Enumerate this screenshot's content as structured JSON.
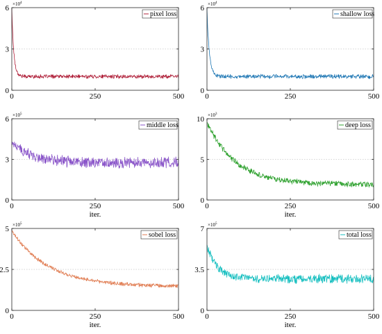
{
  "chart_data": [
    {
      "type": "line",
      "legend": "pixel loss",
      "legend_position": "top-right",
      "color": "#b0213a",
      "multiplier": "×10",
      "multiplier_exp": "4",
      "ylim": [
        0,
        6
      ],
      "yticks": [
        0,
        3,
        6
      ],
      "ytick_labels": [
        "0",
        "3",
        "6"
      ],
      "xlim": [
        0,
        500
      ],
      "xticks": [
        0,
        250,
        500
      ],
      "xtick_labels": [
        "0",
        "250",
        "500"
      ],
      "xlabel": "",
      "grid": "dotted line at middle y tick",
      "curve": {
        "start": 5.9,
        "plateau": 1.0,
        "decay_iters": 6,
        "noise": 0.12
      },
      "x": [
        0,
        5,
        10,
        15,
        20,
        25,
        30,
        40,
        50,
        75,
        100,
        150,
        200,
        250,
        300,
        350,
        400,
        450,
        500
      ],
      "y": [
        5.9,
        3.6,
        2.1,
        1.5,
        1.2,
        1.08,
        1.02,
        1.0,
        1.0,
        1.0,
        1.0,
        1.0,
        1.0,
        1.0,
        1.0,
        1.0,
        1.0,
        1.0,
        1.0
      ]
    },
    {
      "type": "line",
      "legend": "shallow loss",
      "legend_position": "top-right",
      "color": "#1f77b4",
      "multiplier": "×10",
      "multiplier_exp": "4",
      "ylim": [
        0,
        6
      ],
      "yticks": [
        0,
        3,
        6
      ],
      "ytick_labels": [
        "0",
        "3",
        "6"
      ],
      "xlim": [
        0,
        500
      ],
      "xticks": [
        0,
        250,
        500
      ],
      "xtick_labels": [
        "0",
        "250",
        "500"
      ],
      "xlabel": "",
      "grid": "dotted line at middle y tick",
      "curve": {
        "start": 5.9,
        "plateau": 1.0,
        "decay_iters": 7,
        "noise": 0.13
      },
      "x": [
        0,
        5,
        10,
        15,
        20,
        25,
        30,
        40,
        50,
        75,
        100,
        150,
        200,
        250,
        300,
        350,
        400,
        450,
        500
      ],
      "y": [
        5.9,
        3.8,
        2.4,
        1.7,
        1.3,
        1.12,
        1.05,
        1.0,
        1.0,
        1.0,
        1.0,
        1.0,
        1.0,
        1.0,
        1.0,
        1.0,
        1.0,
        1.0,
        1.0
      ]
    },
    {
      "type": "line",
      "legend": "middle loss",
      "legend_position": "top-right",
      "color": "#8a55c9",
      "multiplier": "×10",
      "multiplier_exp": "5",
      "ylim": [
        0,
        6
      ],
      "yticks": [
        0,
        3,
        6
      ],
      "ytick_labels": [
        "0",
        "3",
        "6"
      ],
      "xlim": [
        0,
        500
      ],
      "xticks": [
        0,
        250,
        500
      ],
      "xtick_labels": [
        "0",
        "250",
        "500"
      ],
      "xlabel": "iter.",
      "grid": "dotted line at middle y tick",
      "curve": {
        "start": 4.3,
        "plateau": 2.75,
        "decay_iters": 60,
        "noise": 0.35
      },
      "x": [
        0,
        10,
        25,
        50,
        75,
        100,
        150,
        200,
        250,
        300,
        350,
        400,
        450,
        500
      ],
      "y": [
        4.3,
        3.8,
        3.5,
        3.2,
        3.05,
        2.95,
        2.9,
        2.85,
        2.8,
        2.78,
        2.76,
        2.75,
        2.75,
        2.75
      ]
    },
    {
      "type": "line",
      "legend": "deep loss",
      "legend_position": "top-right",
      "color": "#2ca02c",
      "multiplier": "×10",
      "multiplier_exp": "3",
      "ylim": [
        0,
        10
      ],
      "yticks": [
        0,
        5,
        10
      ],
      "ytick_labels": [
        "0",
        "5",
        "10"
      ],
      "xlim": [
        0,
        500
      ],
      "xticks": [
        0,
        250,
        500
      ],
      "xtick_labels": [
        "0",
        "250",
        "500"
      ],
      "xlabel": "iter.",
      "grid": "dotted line at middle y tick",
      "curve": {
        "start": 9.6,
        "plateau": 1.9,
        "decay_iters": 85,
        "noise": 0.3
      },
      "x": [
        0,
        25,
        50,
        75,
        100,
        150,
        200,
        250,
        300,
        350,
        400,
        450,
        500
      ],
      "y": [
        9.6,
        7.6,
        6.1,
        4.9,
        4.1,
        3.0,
        2.4,
        2.1,
        2.0,
        1.95,
        1.9,
        1.9,
        1.9
      ]
    },
    {
      "type": "line",
      "legend": "sobel loss",
      "legend_position": "top-right",
      "color": "#e07b50",
      "multiplier": "×10",
      "multiplier_exp": "5",
      "ylim": [
        0,
        5
      ],
      "yticks": [
        0,
        2.5,
        5
      ],
      "ytick_labels": [
        "0",
        "2.5",
        "5"
      ],
      "xlim": [
        0,
        500
      ],
      "xticks": [
        0,
        250,
        500
      ],
      "xtick_labels": [
        "0",
        "250",
        "500"
      ],
      "xlabel": "iter.",
      "grid": "dotted line at middle y tick",
      "curve": {
        "start": 4.85,
        "plateau": 1.45,
        "decay_iters": 110,
        "noise": 0.1
      },
      "x": [
        0,
        25,
        50,
        75,
        100,
        150,
        200,
        250,
        300,
        350,
        400,
        450,
        500
      ],
      "y": [
        4.85,
        4.1,
        3.5,
        3.0,
        2.65,
        2.15,
        1.85,
        1.7,
        1.6,
        1.52,
        1.48,
        1.46,
        1.45
      ]
    },
    {
      "type": "line",
      "legend": "total loss",
      "legend_position": "top-right",
      "color": "#17bfc0",
      "multiplier": "×10",
      "multiplier_exp": "5",
      "ylim": [
        0,
        7
      ],
      "yticks": [
        0,
        3.5,
        7
      ],
      "ytick_labels": [
        "0",
        "3.5",
        "7"
      ],
      "xlim": [
        0,
        500
      ],
      "xticks": [
        0,
        250,
        500
      ],
      "xtick_labels": [
        "0",
        "250",
        "500"
      ],
      "xlabel": "iter.",
      "grid": "dotted line at middle y tick",
      "curve": {
        "start": 5.6,
        "plateau": 2.7,
        "decay_iters": 30,
        "noise": 0.32
      },
      "x": [
        0,
        10,
        25,
        50,
        75,
        100,
        150,
        200,
        250,
        300,
        350,
        400,
        450,
        500
      ],
      "y": [
        5.6,
        4.3,
        3.8,
        3.4,
        3.1,
        3.0,
        2.9,
        2.85,
        2.8,
        2.75,
        2.72,
        2.7,
        2.7,
        2.7
      ]
    }
  ]
}
